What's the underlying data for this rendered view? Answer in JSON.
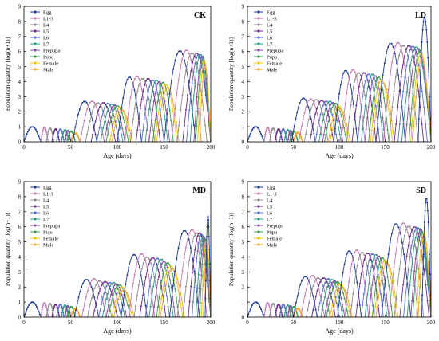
{
  "legend_entries": [
    "Egg",
    "L1-3",
    "L4",
    "L5",
    "L6",
    "L7",
    "Prepupa",
    "Pupa",
    "Female",
    "Male"
  ],
  "series_colors": {
    "Egg": "#1f3a93",
    "L1-3": "#c77db6",
    "L4": "#8f8f8f",
    "L5": "#6d2c86",
    "L6": "#5a6fcf",
    "L7": "#2e9b8a",
    "Prepupa": "#8a4fa6",
    "Pupa": "#3aa04a",
    "Female": "#f0c419",
    "Male": "#f2a93b"
  },
  "chart_data": [
    {
      "type": "line",
      "title": "CK",
      "xlabel": "Age (days)",
      "ylabel": "Population quantity [log(n+1)]",
      "xlim": [
        0,
        200
      ],
      "ylim": [
        0,
        9
      ],
      "xticks": [
        0,
        50,
        100,
        150,
        200
      ],
      "yticks": [
        0,
        1,
        2,
        3,
        4,
        5,
        6,
        7,
        8,
        9
      ],
      "legend": "top-left",
      "generations": [
        {
          "Egg": [
            0,
            18,
            1.0
          ],
          "L1-3": [
            18,
            26,
            0.95
          ],
          "L4": [
            24,
            32,
            0.9
          ],
          "L5": [
            30,
            38,
            0.85
          ],
          "L6": [
            35,
            43,
            0.85
          ],
          "L7": [
            40,
            48,
            0.8
          ],
          "Prepupa": [
            44,
            50,
            0.75
          ],
          "Pupa": [
            46,
            55,
            0.7
          ],
          "Female": [
            50,
            60,
            0.6
          ],
          "Male": [
            50,
            60,
            0.55
          ]
        },
        {
          "Egg": [
            52,
            78,
            2.7
          ],
          "L1-3": [
            60,
            86,
            2.7
          ],
          "L4": [
            66,
            92,
            2.6
          ],
          "L5": [
            72,
            98,
            2.6
          ],
          "L6": [
            78,
            102,
            2.55
          ],
          "L7": [
            82,
            106,
            2.5
          ],
          "Prepupa": [
            86,
            108,
            2.45
          ],
          "Pupa": [
            88,
            112,
            2.4
          ],
          "Female": [
            92,
            114,
            2.3
          ],
          "Male": [
            94,
            116,
            2.1
          ]
        },
        {
          "Egg": [
            100,
            126,
            4.3
          ],
          "L1-3": [
            108,
            134,
            4.35
          ],
          "L4": [
            114,
            140,
            4.2
          ],
          "L5": [
            120,
            146,
            4.2
          ],
          "L6": [
            126,
            150,
            4.1
          ],
          "L7": [
            130,
            154,
            4.1
          ],
          "Prepupa": [
            134,
            156,
            4.0
          ],
          "Pupa": [
            138,
            160,
            3.95
          ],
          "Female": [
            140,
            164,
            3.8
          ],
          "Male": [
            142,
            166,
            3.6
          ]
        },
        {
          "Egg": [
            150,
            184,
            6.05
          ],
          "L1-3": [
            158,
            190,
            6.1
          ],
          "L4": [
            164,
            196,
            5.9
          ],
          "L5": [
            170,
            200,
            5.9
          ],
          "L6": [
            174,
            200,
            5.8
          ],
          "L7": [
            178,
            200,
            5.8
          ],
          "Prepupa": [
            182,
            200,
            5.7
          ],
          "Pupa": [
            184,
            200,
            5.6
          ],
          "Female": [
            186,
            200,
            5.4
          ],
          "Male": [
            188,
            200,
            5.0
          ]
        }
      ]
    },
    {
      "type": "line",
      "title": "LD",
      "xlabel": "Age (days)",
      "ylabel": "Population quantity [log(n+1)]",
      "xlim": [
        0,
        200
      ],
      "ylim": [
        0,
        9
      ],
      "xticks": [
        0,
        50,
        100,
        150,
        200
      ],
      "yticks": [
        0,
        1,
        2,
        3,
        4,
        5,
        6,
        7,
        8,
        9
      ],
      "legend": "top-left",
      "generations": [
        {
          "Egg": [
            0,
            18,
            1.0
          ],
          "L1-3": [
            18,
            26,
            0.95
          ],
          "L4": [
            24,
            32,
            0.9
          ],
          "L5": [
            30,
            38,
            0.85
          ],
          "L6": [
            35,
            43,
            0.85
          ],
          "L7": [
            40,
            48,
            0.8
          ],
          "Prepupa": [
            44,
            50,
            0.75
          ],
          "Pupa": [
            46,
            55,
            0.7
          ],
          "Female": [
            50,
            60,
            0.65
          ],
          "Male": [
            50,
            60,
            0.6
          ]
        },
        {
          "Egg": [
            48,
            74,
            2.9
          ],
          "L1-3": [
            56,
            82,
            2.85
          ],
          "L4": [
            62,
            88,
            2.8
          ],
          "L5": [
            68,
            94,
            2.75
          ],
          "L6": [
            74,
            98,
            2.7
          ],
          "L7": [
            78,
            102,
            2.7
          ],
          "Prepupa": [
            82,
            104,
            2.6
          ],
          "Pupa": [
            84,
            108,
            2.55
          ],
          "Female": [
            88,
            110,
            2.4
          ],
          "Male": [
            90,
            112,
            2.2
          ]
        },
        {
          "Egg": [
            94,
            120,
            4.75
          ],
          "L1-3": [
            102,
            128,
            4.8
          ],
          "L4": [
            108,
            134,
            4.6
          ],
          "L5": [
            114,
            140,
            4.6
          ],
          "L6": [
            120,
            144,
            4.5
          ],
          "L7": [
            124,
            148,
            4.5
          ],
          "Prepupa": [
            128,
            150,
            4.4
          ],
          "Pupa": [
            132,
            154,
            4.3
          ],
          "Female": [
            134,
            158,
            4.1
          ],
          "Male": [
            136,
            160,
            3.9
          ]
        },
        {
          "Egg": [
            140,
            172,
            6.55
          ],
          "L1-3": [
            148,
            180,
            6.6
          ],
          "L4": [
            154,
            186,
            6.4
          ],
          "L5": [
            160,
            192,
            6.4
          ],
          "L6": [
            164,
            196,
            6.35
          ],
          "L7": [
            168,
            200,
            6.3
          ],
          "Prepupa": [
            172,
            200,
            6.2
          ],
          "Pupa": [
            176,
            200,
            6.1
          ],
          "Female": [
            178,
            200,
            5.9
          ],
          "Male": [
            180,
            200,
            5.6
          ]
        },
        {
          "Egg": [
            186,
            200,
            8.3
          ]
        }
      ]
    },
    {
      "type": "line",
      "title": "MD",
      "xlabel": "Age (days)",
      "ylabel": "Population quantity [log(n+1)]",
      "xlim": [
        0,
        200
      ],
      "ylim": [
        0,
        9
      ],
      "xticks": [
        0,
        50,
        100,
        150,
        200
      ],
      "yticks": [
        0,
        1,
        2,
        3,
        4,
        5,
        6,
        7,
        8,
        9
      ],
      "legend": "top-left",
      "generations": [
        {
          "Egg": [
            0,
            18,
            1.0
          ],
          "L1-3": [
            18,
            26,
            0.95
          ],
          "L4": [
            24,
            32,
            0.9
          ],
          "L5": [
            30,
            38,
            0.85
          ],
          "L6": [
            35,
            43,
            0.85
          ],
          "L7": [
            40,
            48,
            0.8
          ],
          "Prepupa": [
            44,
            50,
            0.75
          ],
          "Pupa": [
            46,
            55,
            0.7
          ],
          "Female": [
            50,
            60,
            0.6
          ],
          "Male": [
            50,
            60,
            0.55
          ]
        },
        {
          "Egg": [
            54,
            80,
            2.5
          ],
          "L1-3": [
            62,
            88,
            2.55
          ],
          "L4": [
            68,
            94,
            2.4
          ],
          "L5": [
            74,
            100,
            2.35
          ],
          "L6": [
            80,
            104,
            2.3
          ],
          "L7": [
            84,
            108,
            2.3
          ],
          "Prepupa": [
            88,
            110,
            2.2
          ],
          "Pupa": [
            90,
            114,
            2.15
          ],
          "Female": [
            94,
            116,
            2.0
          ],
          "Male": [
            96,
            118,
            1.8
          ]
        },
        {
          "Egg": [
            104,
            132,
            4.15
          ],
          "L1-3": [
            112,
            140,
            4.2
          ],
          "L4": [
            118,
            146,
            4.0
          ],
          "L5": [
            124,
            152,
            3.95
          ],
          "L6": [
            130,
            156,
            3.9
          ],
          "L7": [
            134,
            160,
            3.85
          ],
          "Prepupa": [
            138,
            162,
            3.7
          ],
          "Pupa": [
            142,
            166,
            3.6
          ],
          "Female": [
            144,
            170,
            3.4
          ],
          "Male": [
            146,
            172,
            3.2
          ]
        },
        {
          "Egg": [
            156,
            188,
            5.75
          ],
          "L1-3": [
            164,
            196,
            5.8
          ],
          "L4": [
            170,
            200,
            5.6
          ],
          "L5": [
            176,
            200,
            5.6
          ],
          "L6": [
            180,
            200,
            5.5
          ],
          "L7": [
            184,
            200,
            5.4
          ],
          "Prepupa": [
            186,
            200,
            5.3
          ],
          "Pupa": [
            188,
            200,
            5.2
          ],
          "Female": [
            190,
            200,
            5.0
          ],
          "Male": [
            192,
            200,
            4.8
          ]
        },
        {
          "Egg": [
            194,
            200,
            6.7
          ]
        }
      ]
    },
    {
      "type": "line",
      "title": "SD",
      "xlabel": "Age (days)",
      "ylabel": "Population quantity [log(n+1)]",
      "xlim": [
        0,
        200
      ],
      "ylim": [
        0,
        9
      ],
      "xticks": [
        0,
        50,
        100,
        150,
        200
      ],
      "yticks": [
        0,
        1,
        2,
        3,
        4,
        5,
        6,
        7,
        8,
        9
      ],
      "legend": "top-left",
      "generations": [
        {
          "Egg": [
            0,
            18,
            1.0
          ],
          "L1-3": [
            18,
            26,
            0.95
          ],
          "L4": [
            24,
            32,
            0.9
          ],
          "L5": [
            30,
            38,
            0.85
          ],
          "L6": [
            35,
            43,
            0.85
          ],
          "L7": [
            40,
            48,
            0.8
          ],
          "Prepupa": [
            44,
            50,
            0.75
          ],
          "Pupa": [
            46,
            55,
            0.7
          ],
          "Female": [
            50,
            60,
            0.6
          ],
          "Male": [
            50,
            60,
            0.55
          ]
        },
        {
          "Egg": [
            50,
            76,
            2.7
          ],
          "L1-3": [
            58,
            84,
            2.75
          ],
          "L4": [
            64,
            90,
            2.6
          ],
          "L5": [
            70,
            96,
            2.6
          ],
          "L6": [
            76,
            100,
            2.55
          ],
          "L7": [
            80,
            104,
            2.5
          ],
          "Prepupa": [
            84,
            106,
            2.4
          ],
          "Pupa": [
            86,
            110,
            2.35
          ],
          "Female": [
            90,
            112,
            2.2
          ],
          "Male": [
            92,
            114,
            2.0
          ]
        },
        {
          "Egg": [
            98,
            124,
            4.4
          ],
          "L1-3": [
            106,
            132,
            4.45
          ],
          "L4": [
            112,
            138,
            4.3
          ],
          "L5": [
            118,
            144,
            4.25
          ],
          "L6": [
            124,
            148,
            4.2
          ],
          "L7": [
            128,
            152,
            4.15
          ],
          "Prepupa": [
            132,
            154,
            4.05
          ],
          "Pupa": [
            136,
            158,
            3.95
          ],
          "Female": [
            138,
            162,
            3.8
          ],
          "Male": [
            140,
            164,
            3.6
          ]
        },
        {
          "Egg": [
            146,
            178,
            6.2
          ],
          "L1-3": [
            154,
            186,
            6.25
          ],
          "L4": [
            160,
            192,
            6.05
          ],
          "L5": [
            166,
            198,
            6.0
          ],
          "L6": [
            170,
            200,
            5.95
          ],
          "L7": [
            174,
            200,
            5.9
          ],
          "Prepupa": [
            178,
            200,
            5.8
          ],
          "Pupa": [
            180,
            200,
            5.7
          ],
          "Female": [
            184,
            200,
            5.6
          ],
          "Male": [
            186,
            200,
            5.4
          ]
        },
        {
          "Egg": [
            190,
            200,
            7.9
          ]
        }
      ]
    }
  ]
}
